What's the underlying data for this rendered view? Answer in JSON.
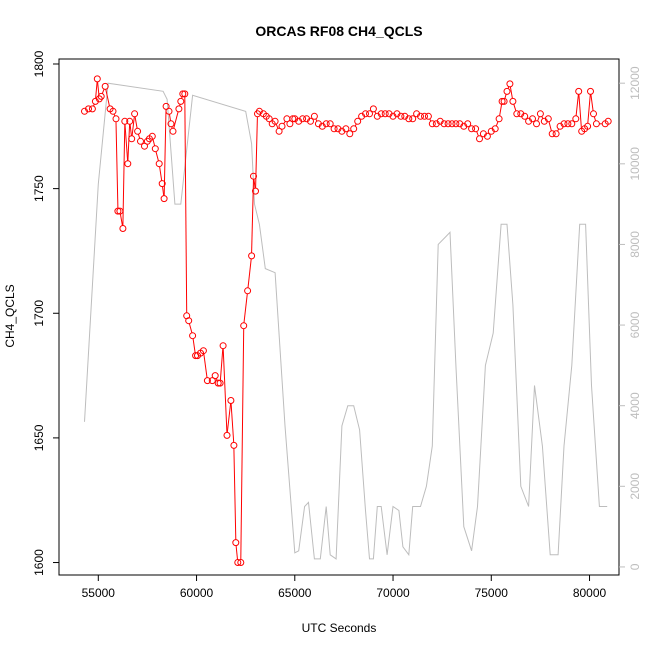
{
  "chart_data": {
    "type": "line",
    "title": "ORCAS RF08 CH4_QCLS",
    "xlabel": "UTC Seconds",
    "ylabel": "CH4_QCLS",
    "xlim": [
      53000,
      81500
    ],
    "ylim": [
      1595,
      1802
    ],
    "y2lim": [
      -200,
      12600
    ],
    "xticks": [
      55000,
      60000,
      65000,
      70000,
      75000,
      80000
    ],
    "yticks": [
      1600,
      1650,
      1700,
      1750,
      1800
    ],
    "y2ticks": [
      0,
      2000,
      4000,
      6000,
      8000,
      10000,
      12000
    ],
    "colors": {
      "ch4": "#ff0000",
      "altitude": "#bdbdbd"
    },
    "series": [
      {
        "axis": "left",
        "style": "points-lines",
        "x": [
          54300,
          54500,
          54700,
          54850,
          54950,
          55050,
          55150,
          55350,
          55600,
          55750,
          55900,
          56000,
          56100,
          56250,
          56350,
          56500,
          56600,
          56700,
          56850,
          57000,
          57150,
          57350,
          57500,
          57600,
          57750,
          57900,
          58100,
          58250,
          58350,
          58450,
          58600,
          58700,
          58800,
          59100,
          59200,
          59300,
          59400,
          59500,
          59600,
          59800,
          59950,
          60050,
          60200,
          60350,
          60550,
          60800,
          60950,
          61100,
          61200,
          61350,
          61550,
          61750,
          61900,
          62000,
          62100,
          62250,
          62400,
          62600,
          62800,
          62900,
          63000,
          63100,
          63200,
          63400,
          63550,
          63700,
          63850,
          64000,
          64200,
          64350,
          64600,
          64750,
          64900,
          65000,
          65200,
          65400,
          65600,
          65800,
          66000,
          66200,
          66400,
          66600,
          66800,
          67000,
          67200,
          67400,
          67600,
          67800,
          68000,
          68200,
          68400,
          68600,
          68800,
          69000,
          69200,
          69400,
          69600,
          69800,
          70000,
          70200,
          70400,
          70600,
          70800,
          71000,
          71200,
          71400,
          71600,
          71800,
          72000,
          72200,
          72400,
          72600,
          72800,
          73000,
          73200,
          73400,
          73600,
          73800,
          74000,
          74200,
          74400,
          74600,
          74800,
          75000,
          75200,
          75400,
          75550,
          75650,
          75800,
          75950,
          76100,
          76300,
          76500,
          76700,
          76900,
          77100,
          77300,
          77500,
          77700,
          77900,
          78100,
          78300,
          78500,
          78700,
          78900,
          79100,
          79300,
          79450,
          79600,
          79750,
          79900,
          80050,
          80200,
          80350,
          80800,
          80950
        ],
        "y": [
          1781,
          1782,
          1782,
          1785,
          1794,
          1786,
          1787,
          1791,
          1782,
          1781,
          1778,
          1741,
          1741,
          1734,
          1777,
          1760,
          1777,
          1770,
          1780,
          1773,
          1769,
          1767,
          1769,
          1770,
          1771,
          1766,
          1760,
          1752,
          1746,
          1783,
          1781,
          1776,
          1773,
          1782,
          1785,
          1788,
          1788,
          1699,
          1697,
          1691,
          1683,
          1683,
          1684,
          1685,
          1673,
          1673,
          1675,
          1672,
          1672,
          1687,
          1651,
          1665,
          1647,
          1608,
          1600,
          1600,
          1695,
          1709,
          1723,
          1755,
          1749,
          1780,
          1781,
          1780,
          1779,
          1778,
          1776,
          1777,
          1773,
          1775,
          1778,
          1776,
          1778,
          1778,
          1777,
          1778,
          1778,
          1777,
          1779,
          1776,
          1775,
          1776,
          1776,
          1774,
          1774,
          1773,
          1774,
          1772,
          1774,
          1777,
          1779,
          1780,
          1780,
          1782,
          1779,
          1780,
          1780,
          1780,
          1779,
          1780,
          1779,
          1779,
          1778,
          1778,
          1780,
          1779,
          1779,
          1779,
          1776,
          1776,
          1777,
          1776,
          1776,
          1776,
          1776,
          1776,
          1775,
          1776,
          1774,
          1774,
          1770,
          1772,
          1771,
          1773,
          1774,
          1778,
          1785,
          1785,
          1789,
          1792,
          1785,
          1780,
          1780,
          1779,
          1777,
          1778,
          1776,
          1780,
          1777,
          1778,
          1772,
          1772,
          1775,
          1776,
          1776,
          1776,
          1778,
          1789,
          1773,
          1774,
          1775,
          1789,
          1780,
          1776,
          1776,
          1777
        ]
      },
      {
        "axis": "right",
        "style": "line",
        "x": [
          54300,
          55000,
          55500,
          58300,
          58500,
          58900,
          59200,
          59800,
          62500,
          62800,
          62950,
          63200,
          63500,
          64000,
          64500,
          65000,
          65200,
          65500,
          65700,
          66000,
          66300,
          66600,
          66800,
          67100,
          67400,
          67700,
          68000,
          68300,
          68600,
          68800,
          69000,
          69200,
          69400,
          69700,
          70000,
          70300,
          70500,
          70800,
          71000,
          71400,
          71700,
          72000,
          72300,
          72700,
          72900,
          73200,
          73600,
          74000,
          74300,
          74700,
          75100,
          75500,
          75800,
          76100,
          76500,
          76900,
          77200,
          77600,
          78000,
          78400,
          78700,
          79100,
          79500,
          79800,
          80100,
          80500,
          80900
        ],
        "y": [
          3600,
          9500,
          12000,
          11800,
          11600,
          9000,
          9000,
          11700,
          11300,
          10500,
          9000,
          8500,
          7400,
          7300,
          3500,
          350,
          400,
          1500,
          1600,
          200,
          200,
          1500,
          300,
          200,
          3500,
          4000,
          4000,
          3400,
          1400,
          200,
          200,
          1500,
          1500,
          300,
          1500,
          1400,
          500,
          300,
          1500,
          1500,
          2000,
          3000,
          8000,
          8200,
          8300,
          5000,
          1000,
          400,
          1500,
          5000,
          5800,
          8500,
          8500,
          6500,
          2000,
          1500,
          4500,
          3000,
          300,
          300,
          3000,
          5000,
          8500,
          8500,
          4500,
          1500,
          1500
        ]
      }
    ]
  }
}
